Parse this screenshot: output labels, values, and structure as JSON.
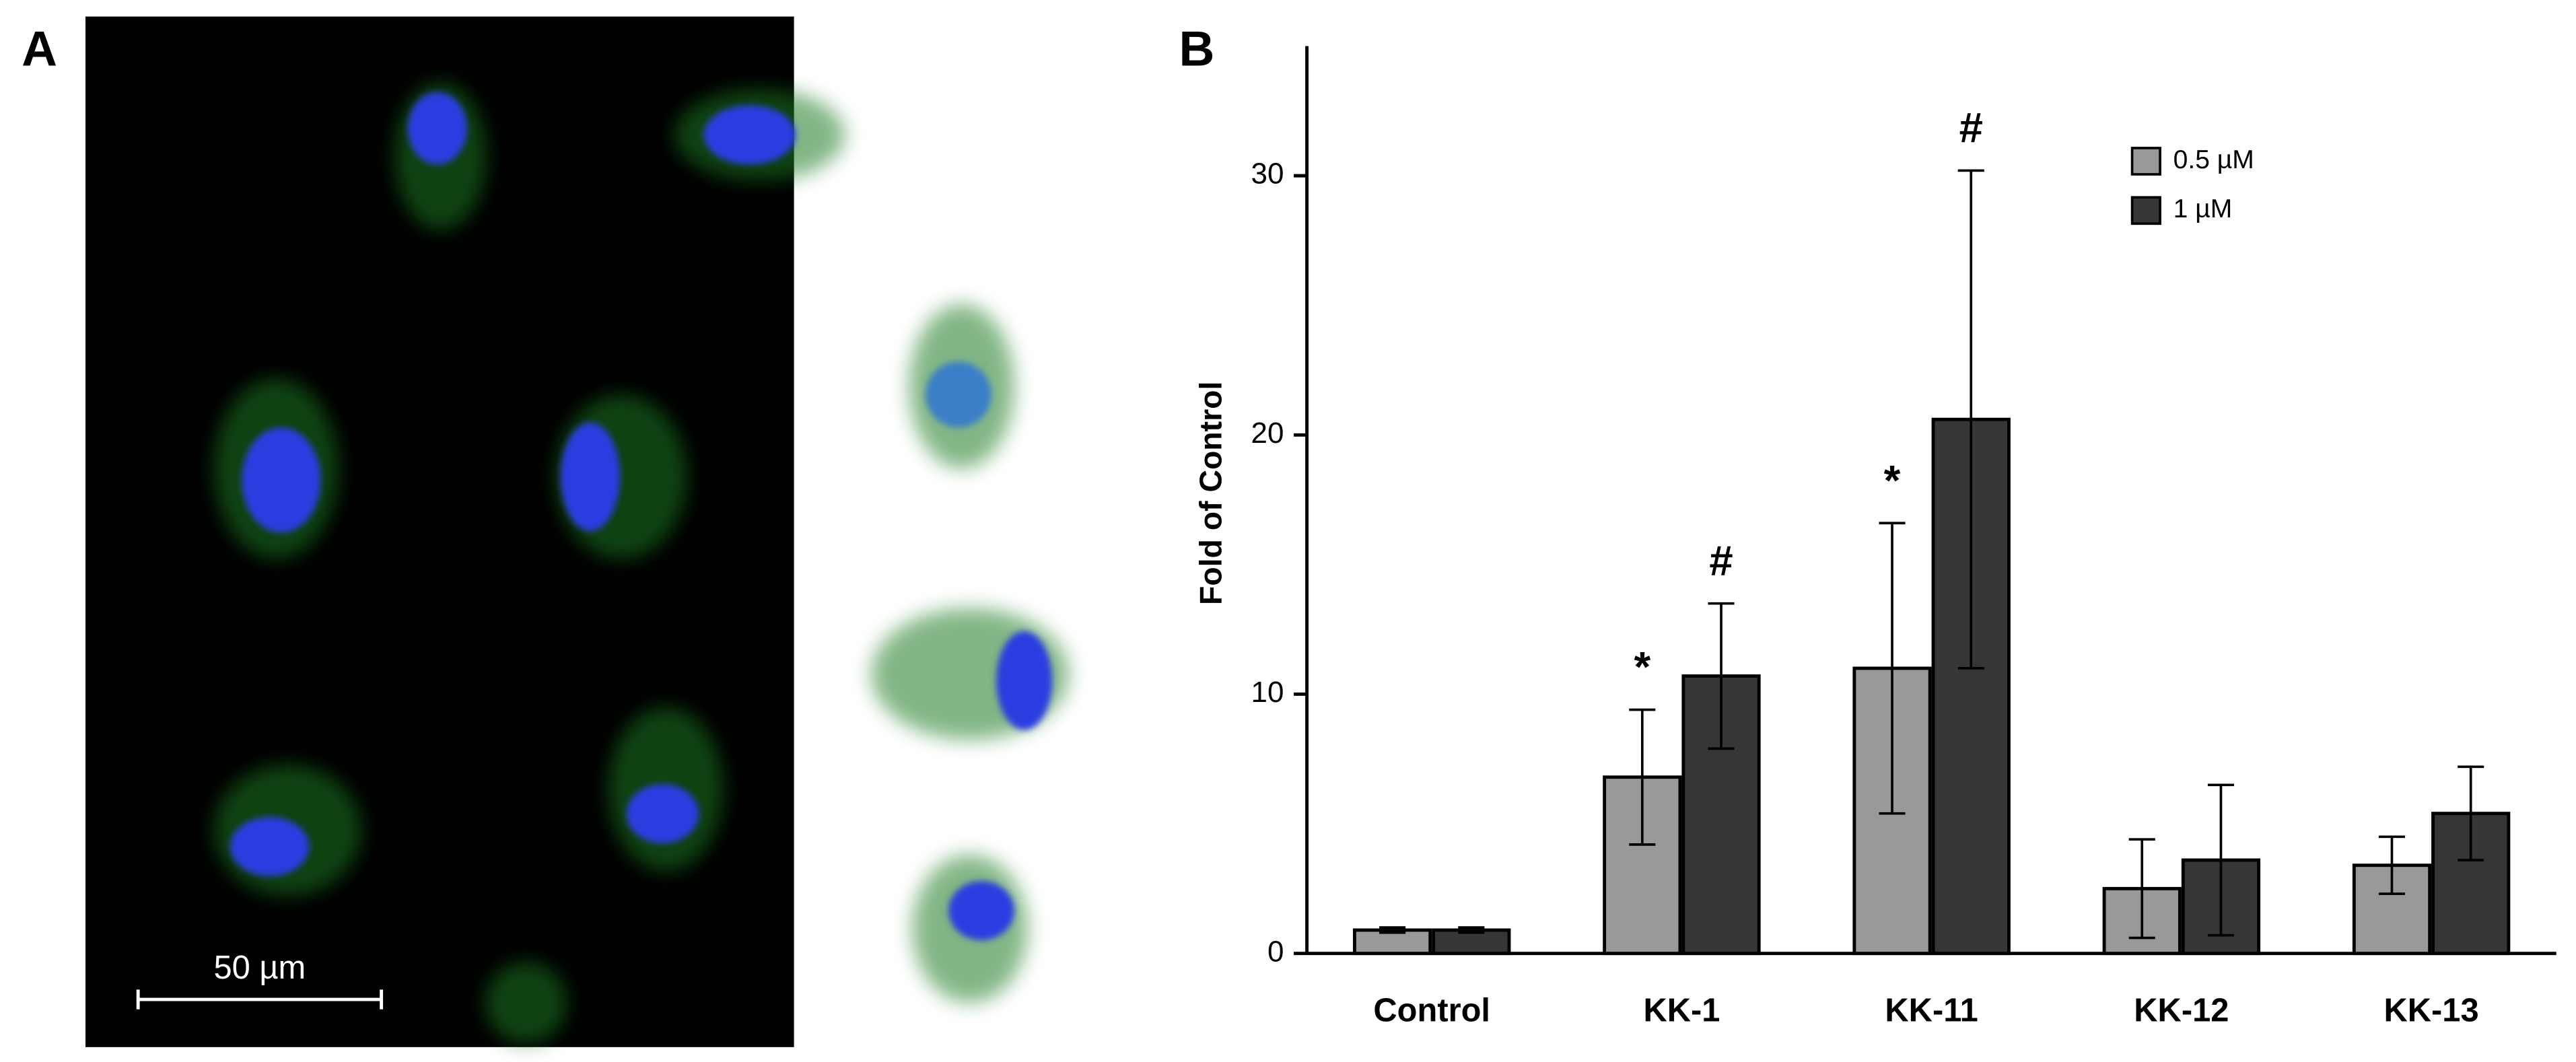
{
  "panel_a": {
    "label": "A",
    "scale_bar": "50 µm"
  },
  "chart_data": {
    "type": "bar",
    "panel_label": "B",
    "ylabel": "Fold of Control",
    "categories": [
      "Control",
      "KK-1",
      "KK-11",
      "KK-12",
      "KK-13"
    ],
    "series": [
      {
        "name": "0.5 µM",
        "color": "#999999",
        "values": [
          0.9,
          6.8,
          11.0,
          2.5,
          3.4
        ],
        "errors": [
          0.1,
          2.6,
          5.6,
          1.9,
          1.1
        ],
        "annotations": [
          null,
          "*",
          "*",
          null,
          null
        ]
      },
      {
        "name": "1 µM",
        "color": "#363636",
        "values": [
          0.9,
          10.7,
          20.6,
          3.6,
          5.4
        ],
        "errors": [
          0.1,
          2.8,
          9.6,
          2.9,
          1.8
        ],
        "annotations": [
          null,
          "#",
          "#",
          null,
          null
        ]
      }
    ],
    "ylim": [
      0,
      35
    ],
    "yticks": [
      0,
      10,
      20,
      30
    ],
    "legend": "upper right"
  }
}
